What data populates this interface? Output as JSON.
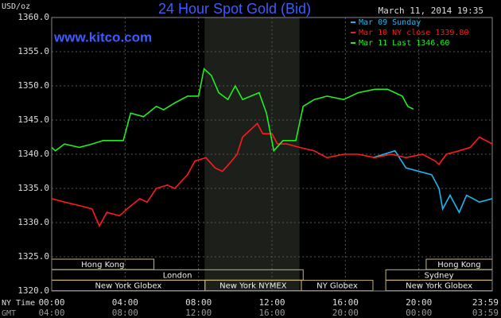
{
  "chart_data": {
    "type": "line",
    "title": "24 Hour Spot Gold (Bid)",
    "subtitle": "March 11, 2014 19:35",
    "watermark": "www.kitco.com",
    "ylabel": "USD/oz",
    "xlabel": "NY Time",
    "x2label": "GMT",
    "xlim": [
      0,
      24
    ],
    "ylim": [
      1320,
      1360
    ],
    "yticks": [
      {
        "value": 1320,
        "label": "1320.0"
      },
      {
        "value": 1325,
        "label": "1325.0"
      },
      {
        "value": 1330,
        "label": "1330.0"
      },
      {
        "value": 1335,
        "label": "1335.0"
      },
      {
        "value": 1340,
        "label": "1340.0"
      },
      {
        "value": 1345,
        "label": "1345.0"
      },
      {
        "value": 1350,
        "label": "1350.0"
      },
      {
        "value": 1355,
        "label": "1355.0"
      },
      {
        "value": 1360,
        "label": "1360.0"
      }
    ],
    "xticks": [
      {
        "value": 0,
        "label": "00:00"
      },
      {
        "value": 4,
        "label": "04:00"
      },
      {
        "value": 8,
        "label": "08:00"
      },
      {
        "value": 12,
        "label": "12:00"
      },
      {
        "value": 16,
        "label": "16:00"
      },
      {
        "value": 20,
        "label": "20:00"
      },
      {
        "value": 23.98,
        "label": "23:59"
      }
    ],
    "x2ticks": [
      {
        "value": 0,
        "label": "04:00"
      },
      {
        "value": 4,
        "label": "08:00"
      },
      {
        "value": 8,
        "label": "12:00"
      },
      {
        "value": 12,
        "label": "16:00"
      },
      {
        "value": 16,
        "label": "20:00"
      },
      {
        "value": 20,
        "label": "00:00"
      },
      {
        "value": 23.98,
        "label": "03:59"
      }
    ],
    "grid": true,
    "shaded_region": [
      8.33,
      13.5
    ],
    "sessions": [
      [
        {
          "label": "Hong Kong",
          "start": 0,
          "end": 5.57
        },
        {
          "label": "Hong Kong",
          "start": 20.4,
          "end": 24
        }
      ],
      [
        {
          "label": "London",
          "start": 0,
          "end": 13.7
        },
        {
          "label": "Sydney",
          "start": 18.2,
          "end": 24
        }
      ],
      [
        {
          "label": "New York Globex",
          "start": 0,
          "end": 8.35
        },
        {
          "label": "New York NYMEX",
          "start": 8.35,
          "end": 13.6
        },
        {
          "label": "NY Globex",
          "start": 13.6,
          "end": 17.5
        },
        {
          "label": "New York Globex",
          "start": 18.2,
          "end": 24
        }
      ]
    ],
    "series": [
      {
        "name": "Mar 09 Sunday",
        "color": "#1ab8f0",
        "x": [
          17.5,
          18.7,
          19.3,
          20.7,
          21.1,
          21.3,
          21.7,
          22.2,
          22.6,
          23.3,
          24.0
        ],
        "values": [
          1339.5,
          1340.5,
          1338,
          1337,
          1335,
          1332,
          1334,
          1331.5,
          1334,
          1333,
          1333.5
        ]
      },
      {
        "name": "Mar 10 NY close 1339.80",
        "color": "#ff1a1a",
        "x": [
          0,
          0.7,
          1.5,
          2.2,
          2.6,
          3.0,
          3.7,
          4.1,
          4.8,
          5.2,
          5.7,
          6.3,
          6.7,
          7.4,
          7.8,
          8.4,
          8.9,
          9.3,
          9.8,
          10.1,
          10.4,
          11.0,
          11.2,
          11.5,
          12.0,
          12.3,
          12.8,
          13.5,
          14.3,
          15.0,
          15.9,
          16.7,
          17.6,
          18.5,
          19.3,
          20.2,
          20.9,
          21.1,
          21.5,
          22.2,
          22.8,
          23.3,
          24.0
        ],
        "values": [
          1333.5,
          1333,
          1332.5,
          1332,
          1329.5,
          1331.5,
          1331,
          1332,
          1333.5,
          1333,
          1335,
          1335.5,
          1335,
          1337,
          1339,
          1339.5,
          1338,
          1337.5,
          1339,
          1340,
          1342.5,
          1344,
          1344.5,
          1343,
          1343,
          1341.5,
          1341.5,
          1341,
          1340.5,
          1339.5,
          1340,
          1340,
          1339.5,
          1340,
          1339.5,
          1340,
          1339,
          1338.5,
          1340,
          1340.5,
          1341,
          1342.5,
          1341.5
        ]
      },
      {
        "name": "Mar 11 Last 1346.60",
        "color": "#22ee22",
        "x": [
          0,
          0.2,
          0.7,
          1.5,
          2.2,
          2.8,
          3.9,
          4.3,
          5.0,
          5.7,
          6.1,
          6.7,
          7.4,
          8.0,
          8.3,
          8.7,
          9.1,
          9.6,
          10.0,
          10.4,
          11.3,
          11.7,
          12.1,
          12.6,
          13.3,
          13.7,
          14.3,
          15.0,
          15.9,
          16.7,
          17.6,
          18.3,
          18.7,
          19.1,
          19.4,
          19.7
        ],
        "values": [
          1341,
          1340.5,
          1341.5,
          1341,
          1341.5,
          1342,
          1342,
          1346,
          1345.5,
          1347,
          1346.5,
          1347.5,
          1348.5,
          1348.5,
          1352.5,
          1351.5,
          1349,
          1348,
          1350,
          1348,
          1349,
          1346,
          1340.5,
          1342,
          1342,
          1347,
          1348,
          1348.5,
          1348,
          1349,
          1349.5,
          1349.5,
          1349,
          1348.5,
          1347,
          1346.6
        ]
      }
    ]
  }
}
